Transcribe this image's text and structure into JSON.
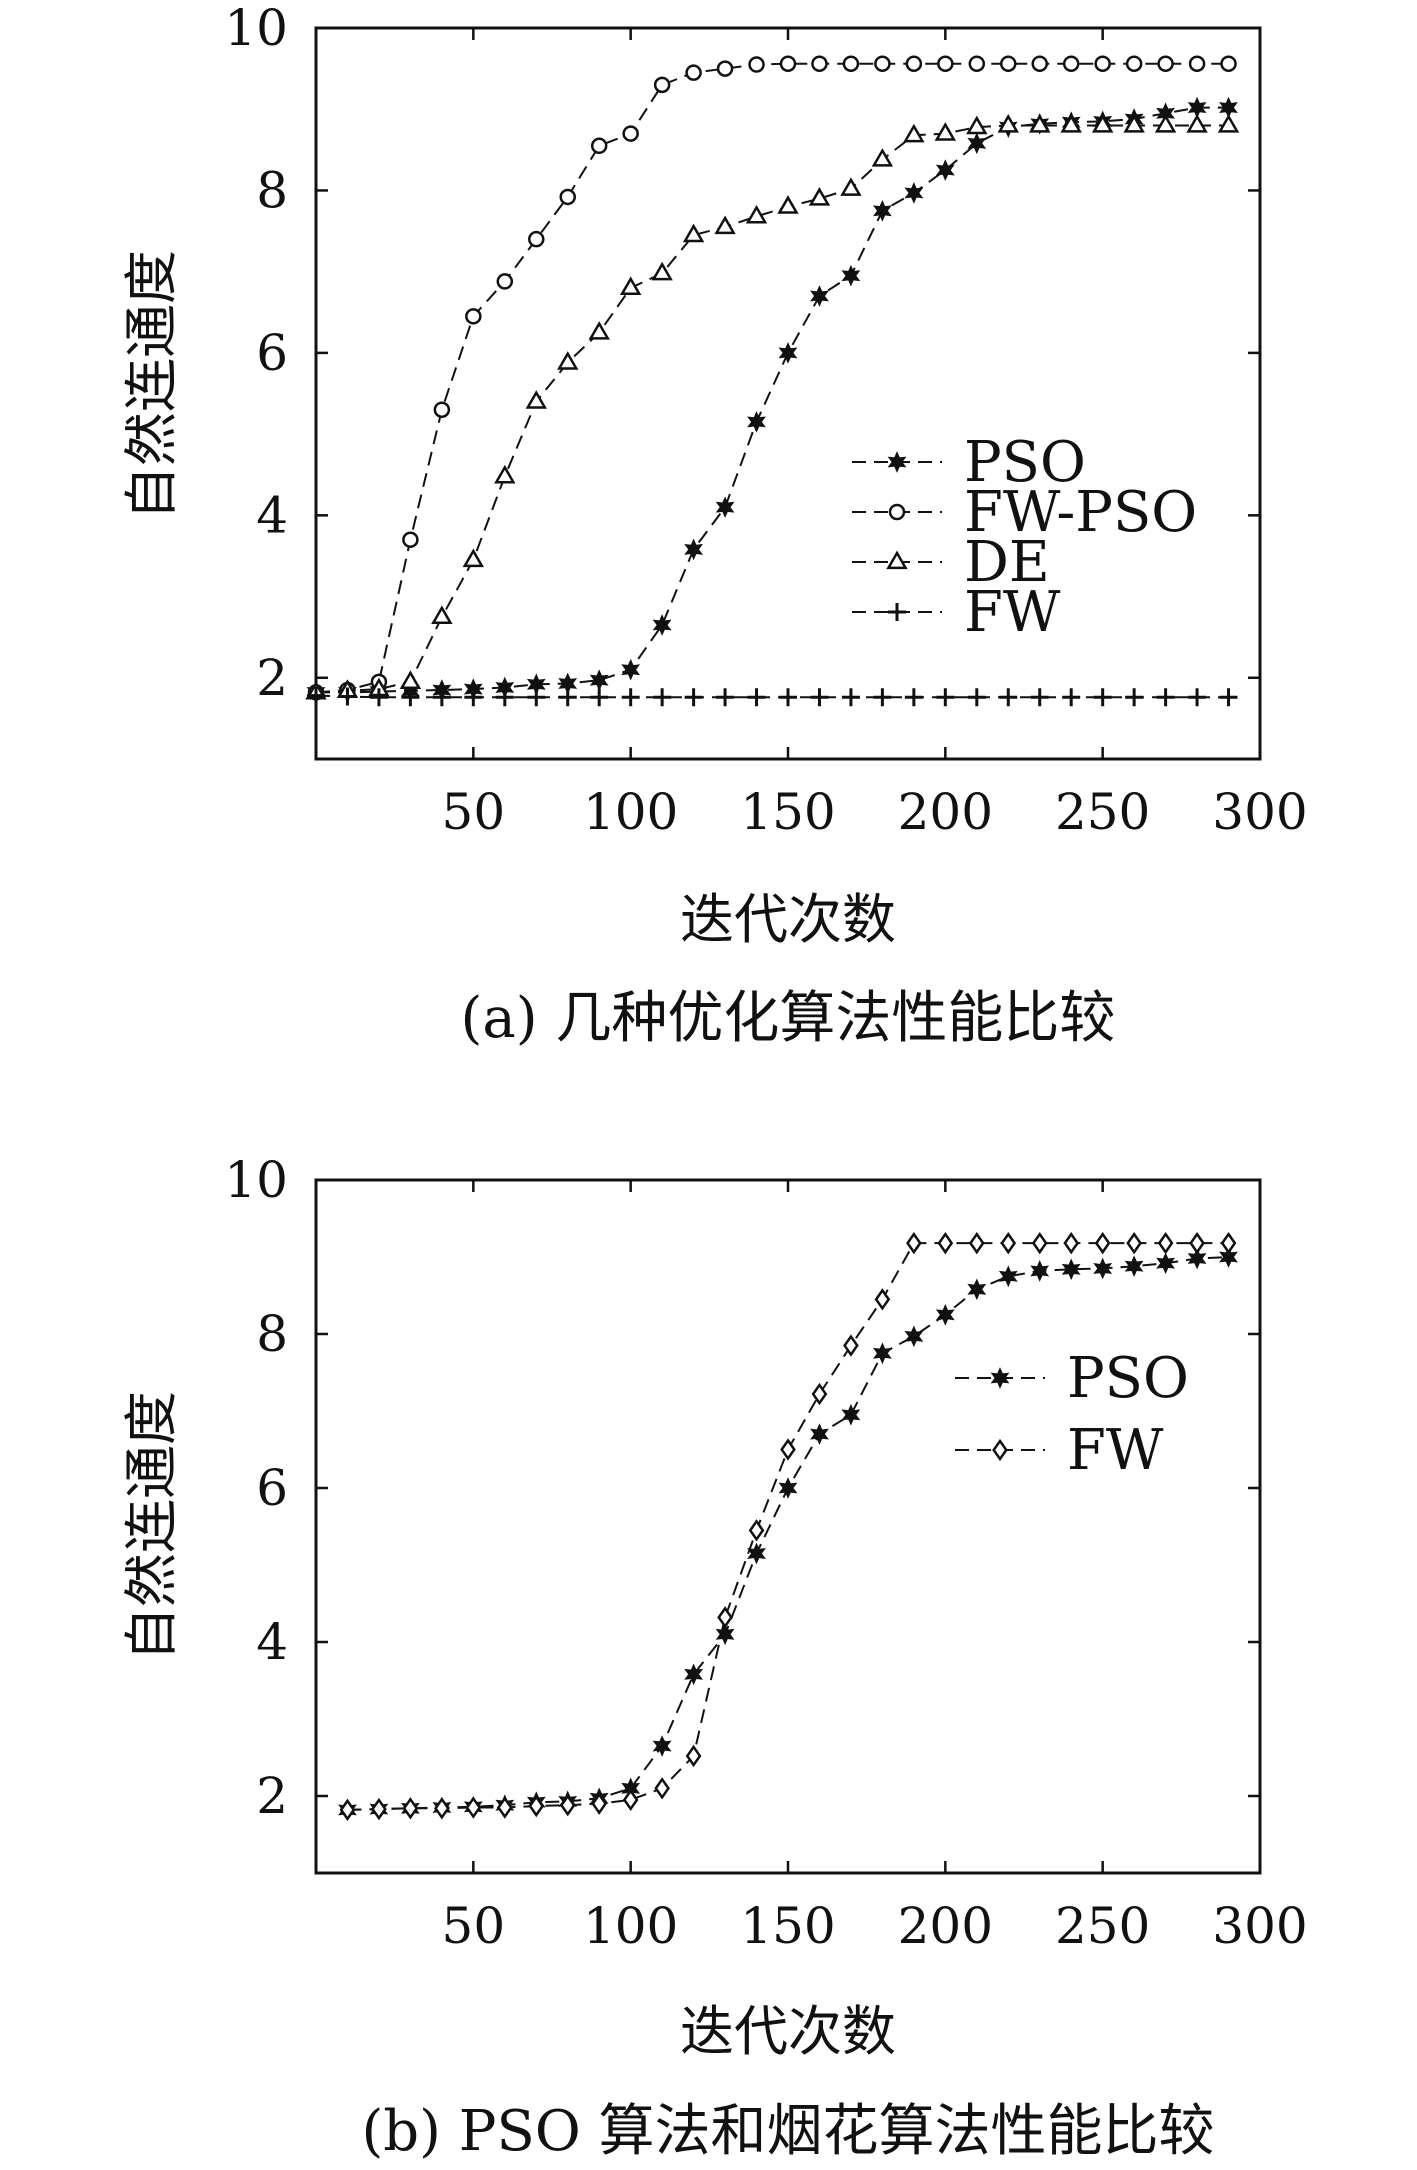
{
  "chart_data": [
    {
      "type": "line",
      "caption": "(a) 几种优化算法性能比较",
      "xlabel": "迭代次数",
      "ylabel": "自然连通度",
      "xlim": [
        0,
        300
      ],
      "ylim": [
        1,
        10
      ],
      "xticks": [
        50,
        100,
        150,
        200,
        250,
        300
      ],
      "yticks": [
        2,
        4,
        6,
        8,
        10
      ],
      "grid": false,
      "legend_position": "center-right",
      "series": [
        {
          "name": "PSO",
          "marker": "filled-star",
          "x": [
            0,
            10,
            20,
            30,
            40,
            50,
            60,
            70,
            80,
            90,
            100,
            110,
            120,
            130,
            140,
            150,
            160,
            170,
            180,
            190,
            200,
            210,
            220,
            230,
            240,
            250,
            260,
            270,
            280,
            290
          ],
          "y": [
            1.82,
            1.82,
            1.83,
            1.84,
            1.85,
            1.86,
            1.88,
            1.92,
            1.93,
            1.97,
            2.1,
            2.65,
            3.58,
            4.1,
            5.15,
            6.0,
            6.7,
            6.95,
            7.75,
            7.97,
            8.25,
            8.58,
            8.78,
            8.82,
            8.84,
            8.85,
            8.88,
            8.95,
            9.02,
            9.02
          ]
        },
        {
          "name": "FW-PSO",
          "marker": "open-circle",
          "x": [
            0,
            10,
            20,
            30,
            40,
            50,
            60,
            70,
            80,
            90,
            100,
            110,
            120,
            130,
            140,
            150,
            160,
            170,
            180,
            190,
            200,
            210,
            220,
            230,
            240,
            250,
            260,
            270,
            280,
            290
          ],
          "y": [
            1.82,
            1.85,
            1.95,
            3.7,
            5.3,
            6.45,
            6.88,
            7.4,
            7.92,
            8.55,
            8.7,
            9.3,
            9.45,
            9.5,
            9.55,
            9.56,
            9.56,
            9.56,
            9.56,
            9.56,
            9.56,
            9.56,
            9.56,
            9.56,
            9.56,
            9.56,
            9.56,
            9.56,
            9.56,
            9.56
          ]
        },
        {
          "name": "DE",
          "marker": "open-triangle",
          "x": [
            0,
            10,
            20,
            30,
            40,
            50,
            60,
            70,
            80,
            90,
            100,
            110,
            120,
            130,
            140,
            150,
            160,
            170,
            180,
            190,
            200,
            210,
            220,
            230,
            240,
            250,
            260,
            270,
            280,
            290
          ],
          "y": [
            1.82,
            1.84,
            1.86,
            1.95,
            2.75,
            3.45,
            4.48,
            5.4,
            5.88,
            6.25,
            6.8,
            6.98,
            7.45,
            7.55,
            7.68,
            7.8,
            7.9,
            8.02,
            8.38,
            8.68,
            8.7,
            8.78,
            8.8,
            8.8,
            8.8,
            8.8,
            8.8,
            8.8,
            8.8,
            8.8
          ]
        },
        {
          "name": "FW",
          "marker": "plus",
          "x": [
            0,
            10,
            20,
            30,
            40,
            50,
            60,
            70,
            80,
            90,
            100,
            110,
            120,
            130,
            140,
            150,
            160,
            170,
            180,
            190,
            200,
            210,
            220,
            230,
            240,
            250,
            260,
            270,
            280,
            290
          ],
          "y": [
            1.78,
            1.77,
            1.76,
            1.76,
            1.76,
            1.76,
            1.76,
            1.76,
            1.76,
            1.76,
            1.76,
            1.76,
            1.76,
            1.76,
            1.76,
            1.76,
            1.76,
            1.76,
            1.76,
            1.76,
            1.76,
            1.76,
            1.76,
            1.76,
            1.76,
            1.76,
            1.76,
            1.76,
            1.76,
            1.76
          ]
        }
      ]
    },
    {
      "type": "line",
      "caption": "(b) PSO 算法和烟花算法性能比较",
      "xlabel": "迭代次数",
      "ylabel": "自然连通度",
      "xlim": [
        0,
        300
      ],
      "ylim": [
        1,
        10
      ],
      "xticks": [
        50,
        100,
        150,
        200,
        250,
        300
      ],
      "yticks": [
        2,
        4,
        6,
        8,
        10
      ],
      "grid": false,
      "legend_position": "upper-right",
      "series": [
        {
          "name": "PSO",
          "marker": "filled-star",
          "x": [
            10,
            20,
            30,
            40,
            50,
            60,
            70,
            80,
            90,
            100,
            110,
            120,
            130,
            140,
            150,
            160,
            170,
            180,
            190,
            200,
            210,
            220,
            230,
            240,
            250,
            260,
            270,
            280,
            290
          ],
          "y": [
            1.82,
            1.83,
            1.84,
            1.85,
            1.86,
            1.88,
            1.92,
            1.93,
            1.97,
            2.1,
            2.65,
            3.58,
            4.1,
            5.15,
            6.0,
            6.7,
            6.95,
            7.75,
            7.97,
            8.25,
            8.58,
            8.75,
            8.82,
            8.84,
            8.85,
            8.88,
            8.92,
            8.98,
            9.0
          ]
        },
        {
          "name": "FW",
          "marker": "open-diamond",
          "x": [
            10,
            20,
            30,
            40,
            50,
            60,
            70,
            80,
            90,
            100,
            110,
            120,
            130,
            140,
            150,
            160,
            170,
            180,
            190,
            200,
            210,
            220,
            230,
            240,
            250,
            260,
            270,
            280,
            290
          ],
          "y": [
            1.82,
            1.83,
            1.84,
            1.84,
            1.85,
            1.85,
            1.87,
            1.88,
            1.9,
            1.95,
            2.1,
            2.52,
            4.32,
            5.45,
            6.5,
            7.22,
            7.85,
            8.45,
            9.18,
            9.18,
            9.18,
            9.18,
            9.18,
            9.18,
            9.18,
            9.18,
            9.18,
            9.18,
            9.18
          ]
        }
      ]
    }
  ]
}
